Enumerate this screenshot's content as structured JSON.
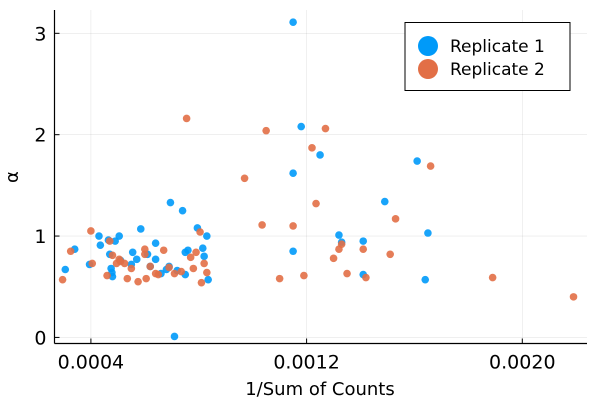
{
  "chart_data": {
    "type": "scatter",
    "xlabel": "1/Sum of Counts",
    "ylabel": "α",
    "xlim": [
      0.000265,
      0.00224
    ],
    "ylim": [
      -0.06,
      3.23
    ],
    "xticks": [
      0.0004,
      0.0012,
      0.002
    ],
    "xtick_labels": [
      "0.0004",
      "0.0012",
      "0.0020"
    ],
    "yticks": [
      0,
      1,
      2,
      3
    ],
    "ytick_labels": [
      "0",
      "1",
      "2",
      "3"
    ],
    "grid": true,
    "legend_position": "top-right",
    "colors": {
      "Replicate 1": "#009af9",
      "Replicate 2": "#e26f46"
    },
    "series": [
      {
        "name": "Replicate 1",
        "points": [
          [
            0.000305,
            0.67
          ],
          [
            0.00034,
            0.87
          ],
          [
            0.000395,
            0.72
          ],
          [
            0.00043,
            1.0
          ],
          [
            0.000435,
            0.91
          ],
          [
            0.000465,
            0.96
          ],
          [
            0.00047,
            0.82
          ],
          [
            0.000475,
            0.68
          ],
          [
            0.000478,
            0.64
          ],
          [
            0.00048,
            0.6
          ],
          [
            0.00049,
            0.95
          ],
          [
            0.000505,
            1.0
          ],
          [
            0.00051,
            0.76
          ],
          [
            0.00055,
            0.72
          ],
          [
            0.000555,
            0.84
          ],
          [
            0.00057,
            0.77
          ],
          [
            0.000585,
            1.07
          ],
          [
            0.00061,
            0.82
          ],
          [
            0.00062,
            0.7
          ],
          [
            0.00064,
            0.77
          ],
          [
            0.00064,
            0.93
          ],
          [
            0.00066,
            0.63
          ],
          [
            0.00068,
            0.67
          ],
          [
            0.00069,
            0.7
          ],
          [
            0.000695,
            1.33
          ],
          [
            0.00071,
            0.01
          ],
          [
            0.00072,
            0.66
          ],
          [
            0.00074,
            1.25
          ],
          [
            0.00075,
            0.84
          ],
          [
            0.00075,
            0.62
          ],
          [
            0.00076,
            0.86
          ],
          [
            0.000795,
            1.08
          ],
          [
            0.000815,
            0.88
          ],
          [
            0.00082,
            0.8
          ],
          [
            0.00083,
            1.0
          ],
          [
            0.000835,
            0.57
          ],
          [
            0.00115,
            3.11
          ],
          [
            0.00115,
            1.62
          ],
          [
            0.00115,
            0.85
          ],
          [
            0.00118,
            2.08
          ],
          [
            0.00125,
            1.8
          ],
          [
            0.00132,
            1.01
          ],
          [
            0.00133,
            0.94
          ],
          [
            0.00141,
            0.95
          ],
          [
            0.00141,
            0.62
          ],
          [
            0.00149,
            1.34
          ],
          [
            0.00161,
            1.74
          ],
          [
            0.00164,
            0.57
          ],
          [
            0.00165,
            1.03
          ]
        ]
      },
      {
        "name": "Replicate 2",
        "points": [
          [
            0.000295,
            0.57
          ],
          [
            0.000325,
            0.85
          ],
          [
            0.0004,
            1.05
          ],
          [
            0.000405,
            0.73
          ],
          [
            0.00046,
            0.61
          ],
          [
            0.00047,
            0.95
          ],
          [
            0.00048,
            0.81
          ],
          [
            0.000495,
            0.73
          ],
          [
            0.000505,
            0.77
          ],
          [
            0.00051,
            0.75
          ],
          [
            0.000525,
            0.73
          ],
          [
            0.000535,
            0.58
          ],
          [
            0.00055,
            0.68
          ],
          [
            0.000575,
            0.55
          ],
          [
            0.0006,
            0.82
          ],
          [
            0.0006,
            0.87
          ],
          [
            0.000605,
            0.58
          ],
          [
            0.00062,
            0.7
          ],
          [
            0.00064,
            0.63
          ],
          [
            0.00065,
            0.62
          ],
          [
            0.00067,
            0.86
          ],
          [
            0.00069,
            0.69
          ],
          [
            0.00071,
            0.63
          ],
          [
            0.000735,
            0.65
          ],
          [
            0.000755,
            2.16
          ],
          [
            0.00077,
            0.79
          ],
          [
            0.00078,
            0.68
          ],
          [
            0.00079,
            0.84
          ],
          [
            0.000805,
            1.04
          ],
          [
            0.00081,
            0.54
          ],
          [
            0.00082,
            0.73
          ],
          [
            0.00083,
            0.64
          ],
          [
            0.00097,
            1.57
          ],
          [
            0.001035,
            1.11
          ],
          [
            0.00105,
            2.04
          ],
          [
            0.0011,
            0.58
          ],
          [
            0.00115,
            1.1
          ],
          [
            0.00119,
            0.61
          ],
          [
            0.00122,
            1.87
          ],
          [
            0.001235,
            1.32
          ],
          [
            0.00127,
            2.06
          ],
          [
            0.0013,
            0.78
          ],
          [
            0.00132,
            0.87
          ],
          [
            0.00133,
            0.92
          ],
          [
            0.00135,
            0.63
          ],
          [
            0.00141,
            0.87
          ],
          [
            0.00142,
            0.59
          ],
          [
            0.00151,
            0.82
          ],
          [
            0.00153,
            1.17
          ],
          [
            0.00166,
            1.69
          ],
          [
            0.00189,
            0.59
          ],
          [
            0.00219,
            0.4
          ]
        ]
      }
    ]
  }
}
